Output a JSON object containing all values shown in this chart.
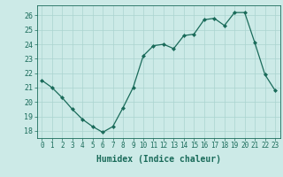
{
  "x": [
    0,
    1,
    2,
    3,
    4,
    5,
    6,
    7,
    8,
    9,
    10,
    11,
    12,
    13,
    14,
    15,
    16,
    17,
    18,
    19,
    20,
    21,
    22,
    23
  ],
  "y": [
    21.5,
    21.0,
    20.3,
    19.5,
    18.8,
    18.3,
    17.9,
    18.3,
    19.6,
    21.0,
    23.2,
    23.9,
    24.0,
    23.7,
    24.6,
    24.7,
    25.7,
    25.8,
    25.3,
    26.2,
    26.2,
    24.1,
    21.9,
    20.8
  ],
  "xlabel": "Humidex (Indice chaleur)",
  "xlim": [
    -0.5,
    23.5
  ],
  "ylim": [
    17.5,
    26.7
  ],
  "yticks": [
    18,
    19,
    20,
    21,
    22,
    23,
    24,
    25,
    26
  ],
  "xticks": [
    0,
    1,
    2,
    3,
    4,
    5,
    6,
    7,
    8,
    9,
    10,
    11,
    12,
    13,
    14,
    15,
    16,
    17,
    18,
    19,
    20,
    21,
    22,
    23
  ],
  "line_color": "#1a6b5a",
  "marker": "D",
  "marker_size": 2,
  "bg_color": "#cceae7",
  "grid_color": "#aad4d0",
  "tick_color": "#1a6b5a",
  "label_color": "#1a6b5a",
  "xlabel_fontsize": 7,
  "ytick_fontsize": 6,
  "xtick_fontsize": 5.5,
  "linewidth": 0.9
}
